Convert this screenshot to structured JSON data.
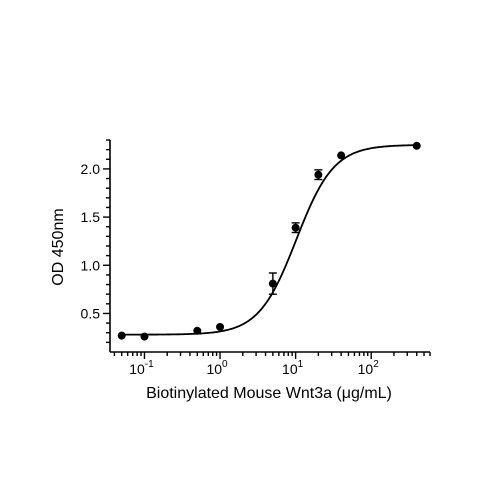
{
  "chart_data": {
    "type": "scatter",
    "title": "",
    "xlabel": "Biotinylated Mouse Wnt3a (μg/mL)",
    "ylabel": "OD 450nm",
    "xscale": "log",
    "xlim": [
      0.035,
      600
    ],
    "ylim": [
      0.1,
      2.3
    ],
    "x_ticks": [
      {
        "base": "10",
        "exp": "-1",
        "value": 0.1
      },
      {
        "base": "10",
        "exp": "0",
        "value": 1
      },
      {
        "base": "10",
        "exp": "1",
        "value": 10
      },
      {
        "base": "10",
        "exp": "2",
        "value": 100
      }
    ],
    "y_ticks": [
      {
        "label": "0.5",
        "value": 0.5
      },
      {
        "label": "1.0",
        "value": 1.0
      },
      {
        "label": "1.5",
        "value": 1.5
      },
      {
        "label": "2.0",
        "value": 2.0
      }
    ],
    "grid": false,
    "legend": "none",
    "series": [
      {
        "points": [
          {
            "x": 0.05,
            "y": 0.27,
            "err": 0.01
          },
          {
            "x": 0.1,
            "y": 0.26,
            "err": 0.01
          },
          {
            "x": 0.5,
            "y": 0.32,
            "err": 0.01
          },
          {
            "x": 1,
            "y": 0.36,
            "err": 0.01
          },
          {
            "x": 5,
            "y": 0.81,
            "err": 0.11
          },
          {
            "x": 10,
            "y": 1.39,
            "err": 0.05
          },
          {
            "x": 20,
            "y": 1.94,
            "err": 0.05
          },
          {
            "x": 40,
            "y": 2.14,
            "err": 0.02
          },
          {
            "x": 400,
            "y": 2.24,
            "err": 0.01
          }
        ],
        "fit": {
          "bottom": 0.28,
          "top": 2.25,
          "ec50": 10.2,
          "hill": 1.75
        }
      }
    ],
    "color": "#000000"
  }
}
